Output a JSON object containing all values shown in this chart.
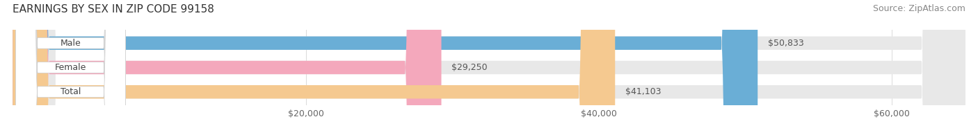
{
  "title": "EARNINGS BY SEX IN ZIP CODE 99158",
  "source": "Source: ZipAtlas.com",
  "categories": [
    "Male",
    "Female",
    "Total"
  ],
  "values": [
    50833,
    29250,
    41103
  ],
  "value_labels": [
    "$50,833",
    "$29,250",
    "$41,103"
  ],
  "bar_colors": [
    "#6aaed6",
    "#f4a8bc",
    "#f5c990"
  ],
  "bar_edge_colors": [
    "#6aaed6",
    "#f4a8bc",
    "#f5c990"
  ],
  "xlim": [
    0,
    65000
  ],
  "xticks": [
    20000,
    40000,
    60000
  ],
  "xticklabels": [
    "$20,000",
    "$40,000",
    "$60,000"
  ],
  "background_color": "#ffffff",
  "bar_bg_color": "#e8e8e8",
  "title_fontsize": 11,
  "source_fontsize": 9,
  "label_fontsize": 9,
  "value_fontsize": 9,
  "tick_fontsize": 9
}
